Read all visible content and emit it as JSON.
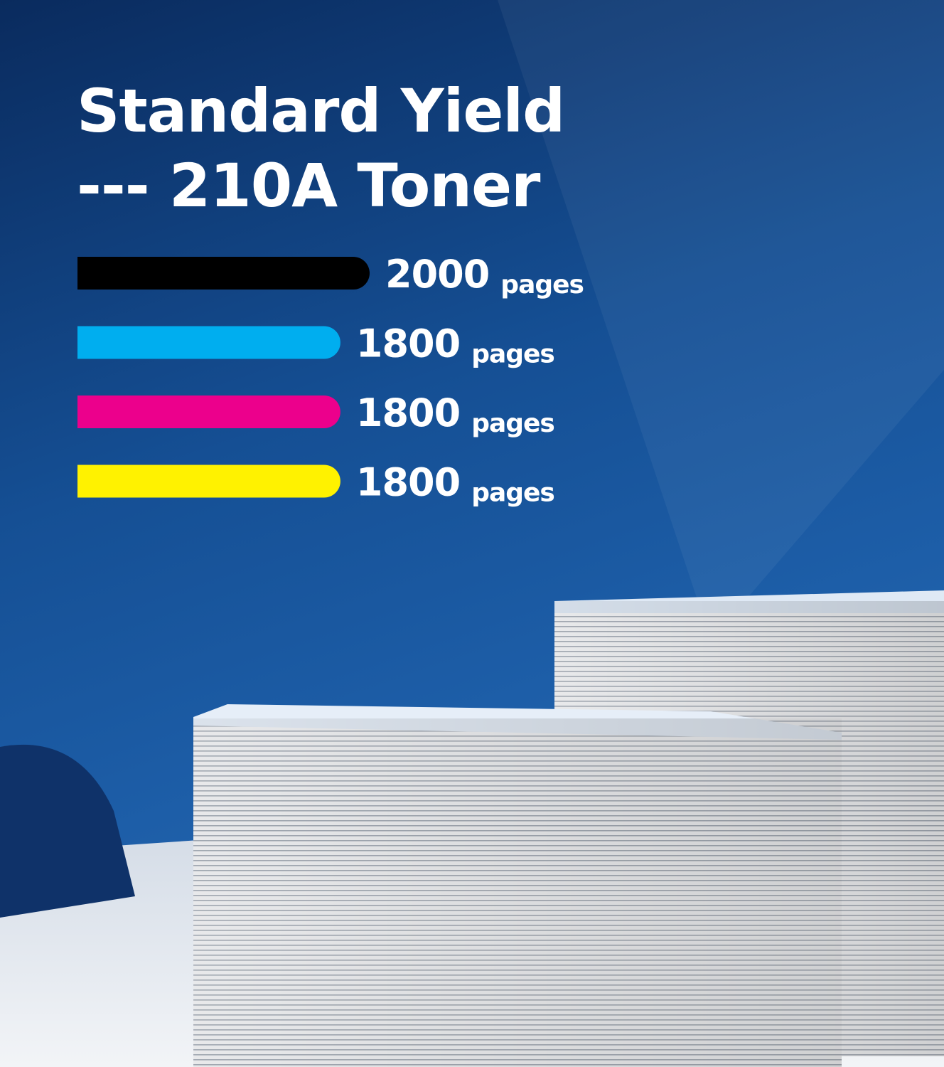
{
  "chart_data": {
    "type": "bar",
    "title": [
      "Standard Yield",
      "--- 210A Toner"
    ],
    "unit": "pages",
    "values": [
      2000,
      1800,
      1800,
      1800
    ],
    "colors": [
      "#000000",
      "#00aeef",
      "#ec008c",
      "#fff200"
    ]
  }
}
